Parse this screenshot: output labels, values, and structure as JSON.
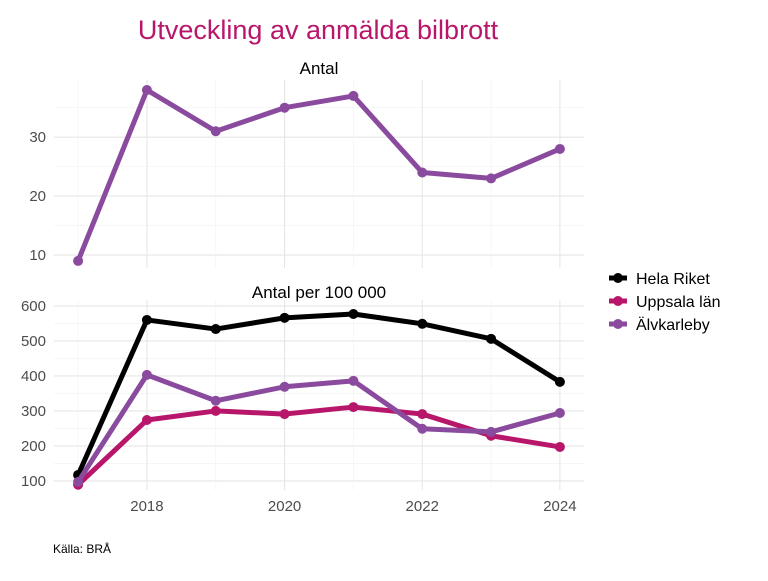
{
  "chart_data": [
    {
      "type": "line",
      "title": "Utveckling av anmälda bilbrott",
      "subtitle": "Antal",
      "x": [
        2017,
        2018,
        2019,
        2020,
        2021,
        2022,
        2023,
        2024
      ],
      "x_ticks": [
        2018,
        2020,
        2022,
        2024
      ],
      "y_ticks": [
        10,
        20,
        30
      ],
      "ylim": [
        7.8,
        39.7
      ],
      "xlim": [
        2016.65,
        2024.35
      ],
      "grid": true,
      "series": [
        {
          "name": "Älvkarleby",
          "color": "#8a4a9e",
          "values": [
            9,
            38,
            31,
            35,
            37,
            24,
            23,
            28
          ]
        }
      ]
    },
    {
      "type": "line",
      "subtitle": "Antal per 100 000",
      "x": [
        2017,
        2018,
        2019,
        2020,
        2021,
        2022,
        2023,
        2024
      ],
      "x_ticks": [
        2018,
        2020,
        2022,
        2024
      ],
      "y_ticks": [
        100,
        200,
        300,
        400,
        500,
        600
      ],
      "ylim": [
        74,
        617
      ],
      "xlim": [
        2016.65,
        2024.35
      ],
      "grid": true,
      "legend": "right",
      "series": [
        {
          "name": "Hela Riket",
          "color": "#000000",
          "values": [
            117,
            560,
            534,
            566,
            577,
            549,
            506,
            383
          ]
        },
        {
          "name": "Uppsala län",
          "color": "#b8166b",
          "values": [
            89,
            274,
            300,
            291,
            311,
            291,
            229,
            197
          ]
        },
        {
          "name": "Älvkarleby",
          "color": "#8a4a9e",
          "values": [
            97,
            403,
            329,
            369,
            386,
            249,
            240,
            294
          ]
        }
      ]
    }
  ],
  "title_color": "#b8166b",
  "caption": "Källa: BRÅ"
}
